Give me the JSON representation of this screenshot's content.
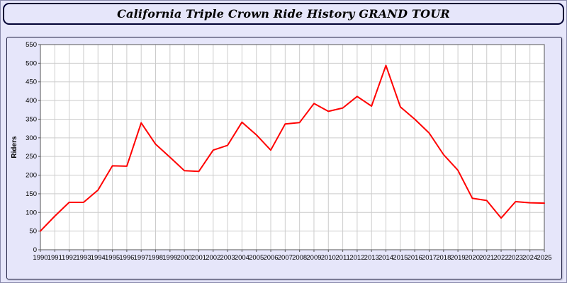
{
  "title": "California Triple Crown Ride History GRAND TOUR",
  "colors": {
    "page_background": "#e6e6fa",
    "plot_background": "#ffffff",
    "grid": "#cccccc",
    "axis": "#555555",
    "line": "#ff0000",
    "border": "#000033",
    "text": "#000000"
  },
  "chart_data": {
    "type": "line",
    "title": "California Triple Crown Ride History GRAND TOUR",
    "xlabel": "",
    "ylabel": "Riders",
    "ylim": [
      0,
      550
    ],
    "ytick_step": 50,
    "grid": true,
    "legend_position": "none",
    "line_color": "#ff0000",
    "x": [
      1990,
      1991,
      1992,
      1993,
      1994,
      1995,
      1996,
      1997,
      1998,
      1999,
      2000,
      2001,
      2002,
      2003,
      2004,
      2005,
      2006,
      2007,
      2008,
      2009,
      2010,
      2011,
      2012,
      2013,
      2014,
      2015,
      2016,
      2017,
      2018,
      2019,
      2020,
      2021,
      2022,
      2023,
      2024,
      2025
    ],
    "series": [
      {
        "name": "Riders",
        "values": [
          50,
          90,
          127,
          127,
          160,
          225,
          224,
          340,
          283,
          248,
          212,
          210,
          267,
          280,
          342,
          308,
          267,
          337,
          341,
          392,
          371,
          380,
          411,
          385,
          494,
          383,
          350,
          313,
          255,
          213,
          138,
          132,
          85,
          129,
          126,
          125
        ]
      }
    ]
  }
}
